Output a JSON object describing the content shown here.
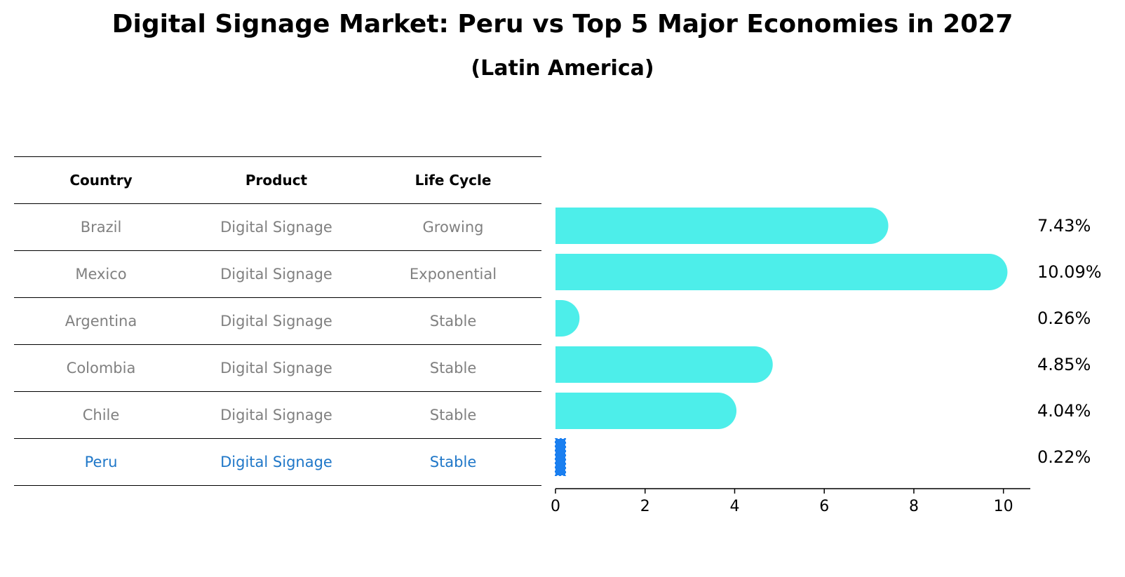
{
  "chart_data": {
    "type": "bar",
    "orientation": "horizontal",
    "title": "Digital Signage Market: Peru vs Top 5 Major Economies in 2027",
    "subtitle": "(Latin America)",
    "categories": [
      "Brazil",
      "Mexico",
      "Argentina",
      "Colombia",
      "Chile",
      "Peru"
    ],
    "values": [
      7.43,
      10.09,
      0.26,
      4.85,
      4.04,
      0.22
    ],
    "value_labels": [
      "7.43%",
      "10.09%",
      "0.26%",
      "4.85%",
      "4.04%",
      "0.22%"
    ],
    "highlight": "Peru",
    "xlim": [
      0,
      10.6
    ],
    "xticks": [
      0,
      2,
      4,
      6,
      8,
      10
    ],
    "grid": false,
    "bar_color": "#4deeea",
    "highlight_color": "#1a7ff0"
  },
  "table": {
    "headers": [
      "Country",
      "Product",
      "Life Cycle"
    ],
    "rows": [
      [
        "Brazil",
        "Digital Signage",
        "Growing"
      ],
      [
        "Mexico",
        "Digital Signage",
        "Exponential"
      ],
      [
        "Argentina",
        "Digital Signage",
        "Stable"
      ],
      [
        "Colombia",
        "Digital Signage",
        "Stable"
      ],
      [
        "Chile",
        "Digital Signage",
        "Stable"
      ],
      [
        "Peru",
        "Digital Signage",
        "Stable"
      ]
    ],
    "highlight_color": "#1f77c8",
    "text_color": "#808080"
  }
}
